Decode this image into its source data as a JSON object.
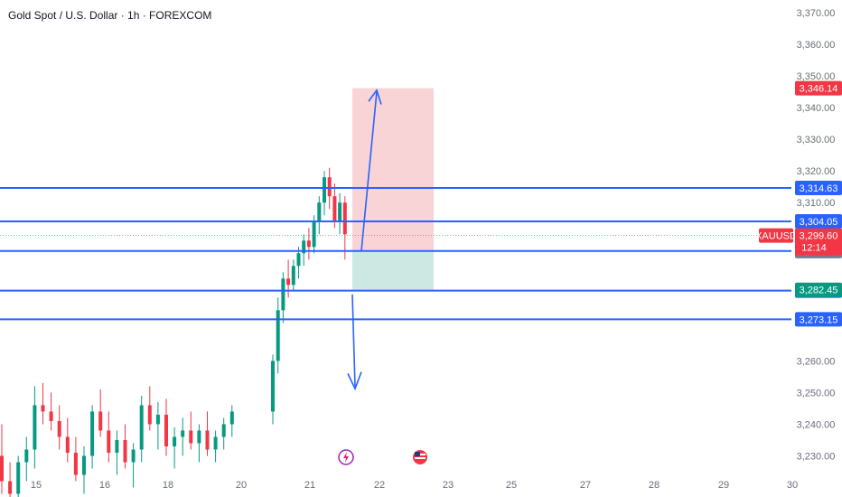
{
  "header": {
    "title": "Gold Spot / U.S. Dollar · 1h · FOREXCOM"
  },
  "colors": {
    "up": "#089981",
    "down": "#f23645",
    "blue_line": "#2962ff",
    "arrow": "#2962ff",
    "target_zone": "#f7c9cc",
    "stop_zone": "#c8e6df",
    "price_label": "#f23645",
    "countdown_gray": "#787b86",
    "green_label": "#089981"
  },
  "icons": [
    "lightning-event-icon",
    "us-flag-event-icon"
  ],
  "chart_data": {
    "type": "candlestick",
    "symbol": "XAUUSD",
    "current_price": "3,299.60",
    "countdown": "12:14",
    "y_ticks": [
      "3,370.00",
      "3,360.00",
      "3,350.00",
      "3,340.00",
      "3,330.00",
      "3,320.00",
      "3,310.00",
      "3,260.00",
      "3,250.00",
      "3,240.00",
      "3,230.00"
    ],
    "y_tick_values": [
      3370,
      3360,
      3350,
      3340,
      3330,
      3320,
      3310,
      3260,
      3250,
      3240,
      3230
    ],
    "x_ticks": [
      "15",
      "16",
      "18",
      "20",
      "21",
      "22",
      "23",
      "25",
      "27",
      "28",
      "29",
      "30"
    ],
    "ylim": [
      3225,
      3374
    ],
    "horizontal_lines": [
      {
        "label": "3,314.63",
        "value": 3314.63
      },
      {
        "label": "3,304.05",
        "value": 3304.05
      },
      {
        "label": "3,294.72",
        "value": 3294.72
      },
      {
        "label": "3,282.21",
        "value": 3282.21
      },
      {
        "label": "3,273.15",
        "value": 3273.15
      }
    ],
    "price_labels": [
      {
        "label": "3,346.14",
        "value": 3346.14,
        "color": "#f23645"
      },
      {
        "label": "3,294.76",
        "value": 3294.76,
        "color": "#787b86"
      },
      {
        "label": "3,282.45",
        "value": 3282.45,
        "color": "#089981"
      }
    ],
    "position": {
      "entry": 3294.72,
      "target": 3346.14,
      "stop": 3282.45
    },
    "candles_ohlc": [
      [
        3230,
        3240,
        3218,
        3222
      ],
      [
        3222,
        3228,
        3214,
        3218
      ],
      [
        3218,
        3230,
        3210,
        3228
      ],
      [
        3228,
        3236,
        3222,
        3232
      ],
      [
        3232,
        3252,
        3226,
        3246
      ],
      [
        3246,
        3253,
        3240,
        3244
      ],
      [
        3244,
        3250,
        3238,
        3241
      ],
      [
        3241,
        3246,
        3232,
        3236
      ],
      [
        3236,
        3242,
        3228,
        3231
      ],
      [
        3231,
        3236,
        3222,
        3224
      ],
      [
        3224,
        3233,
        3218,
        3230
      ],
      [
        3230,
        3246,
        3226,
        3244
      ],
      [
        3244,
        3251,
        3236,
        3238
      ],
      [
        3238,
        3244,
        3228,
        3231
      ],
      [
        3231,
        3238,
        3224,
        3235
      ],
      [
        3235,
        3240,
        3226,
        3228
      ],
      [
        3228,
        3234,
        3220,
        3232
      ],
      [
        3232,
        3249,
        3228,
        3246
      ],
      [
        3246,
        3252,
        3238,
        3240
      ],
      [
        3240,
        3247,
        3232,
        3243
      ],
      [
        3243,
        3248,
        3230,
        3233
      ],
      [
        3233,
        3239,
        3226,
        3236
      ],
      [
        3236,
        3242,
        3230,
        3238
      ],
      [
        3238,
        3244,
        3232,
        3234
      ],
      [
        3234,
        3240,
        3228,
        3238
      ],
      [
        3238,
        3244,
        3230,
        3232
      ],
      [
        3232,
        3238,
        3228,
        3236
      ],
      [
        3236,
        3242,
        3232,
        3240
      ],
      [
        3240,
        3246,
        3236,
        3244
      ],
      [
        3244,
        3262,
        3240,
        3260
      ],
      [
        3260,
        3280,
        3256,
        3276
      ],
      [
        3276,
        3288,
        3272,
        3286
      ],
      [
        3286,
        3292,
        3280,
        3284
      ],
      [
        3284,
        3292,
        3282,
        3290
      ],
      [
        3290,
        3296,
        3286,
        3294
      ],
      [
        3294,
        3300,
        3290,
        3298
      ],
      [
        3298,
        3302,
        3292,
        3296
      ],
      [
        3296,
        3306,
        3294,
        3304
      ],
      [
        3304,
        3312,
        3300,
        3310
      ],
      [
        3310,
        3320,
        3306,
        3318
      ],
      [
        3318,
        3321,
        3308,
        3312
      ],
      [
        3312,
        3316,
        3302,
        3304
      ],
      [
        3304,
        3313,
        3300,
        3310
      ],
      [
        3310,
        3312,
        3292,
        3300
      ]
    ]
  }
}
